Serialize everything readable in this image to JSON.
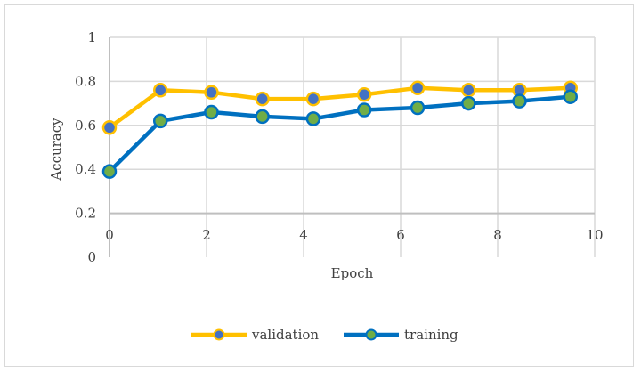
{
  "chart_data": {
    "type": "line",
    "xlabel": "Epoch",
    "ylabel": "Accuracy",
    "xlim": [
      0,
      10
    ],
    "ylim": [
      0,
      1
    ],
    "x_ticks": [
      "0",
      "2",
      "4",
      "6",
      "8",
      "10"
    ],
    "y_ticks": [
      "0",
      "0.2",
      "0.4",
      "0.6",
      "0.8",
      "1"
    ],
    "grid": true,
    "legend_position": "bottom",
    "series": [
      {
        "name": "validation",
        "color": "#FFC000",
        "marker_color": "#4472C4",
        "x": [
          0,
          1.05,
          2.1,
          3.15,
          4.2,
          5.25,
          6.35,
          7.4,
          8.45,
          9.5
        ],
        "y": [
          0.59,
          0.76,
          0.75,
          0.72,
          0.72,
          0.74,
          0.77,
          0.76,
          0.76,
          0.77
        ]
      },
      {
        "name": "training",
        "color": "#0070C0",
        "marker_color": "#70AD47",
        "x": [
          0,
          1.05,
          2.1,
          3.15,
          4.2,
          5.25,
          6.35,
          7.4,
          8.45,
          9.5
        ],
        "y": [
          0.39,
          0.62,
          0.66,
          0.64,
          0.63,
          0.67,
          0.68,
          0.7,
          0.71,
          0.73
        ]
      }
    ]
  }
}
